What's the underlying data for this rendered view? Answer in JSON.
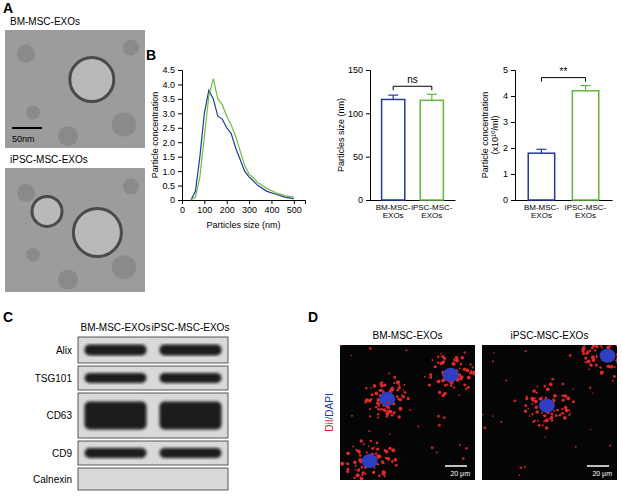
{
  "figure": {
    "panel_letters": [
      "A",
      "B",
      "C",
      "D"
    ],
    "panel_a": {
      "images": [
        {
          "label": "BM-MSC-EXOs"
        },
        {
          "label": "iPSC-MSC-EXOs"
        }
      ],
      "scale_bar": "50nm"
    },
    "panel_c": {
      "columns": [
        "BM-MSC-EXOs",
        "iPSC-MSC-EXOs"
      ],
      "rows": [
        {
          "label": "Alix",
          "detected": true
        },
        {
          "label": "TSG101",
          "detected": true
        },
        {
          "label": "CD63",
          "detected": true
        },
        {
          "label": "CD9",
          "detected": true
        },
        {
          "label": "Calnexin",
          "detected": false
        }
      ]
    },
    "panel_d": {
      "columns": [
        "BM-MSC-EXOs",
        "iPSC-MSC-EXOs"
      ],
      "stain_label": [
        {
          "text": "DiI",
          "color": "#d42222"
        },
        {
          "text": "/DAPI",
          "color": "#2233a8"
        }
      ],
      "scale_bar": "20 μm"
    }
  },
  "chart_data": [
    {
      "type": "line",
      "x_label": "Particles size (nm)",
      "y_label": "Particle concentration",
      "x": [
        40,
        60,
        80,
        100,
        120,
        140,
        160,
        180,
        200,
        220,
        240,
        260,
        280,
        300,
        340,
        380,
        420,
        460,
        500
      ],
      "series": [
        {
          "color": "#25389a",
          "values": [
            0,
            0.3,
            1.5,
            3.0,
            3.8,
            3.5,
            2.9,
            2.8,
            2.5,
            2.3,
            1.8,
            1.4,
            1.0,
            0.8,
            0.5,
            0.3,
            0.2,
            0.1,
            0.05
          ]
        },
        {
          "color": "#6cbd3c",
          "values": [
            0,
            0.1,
            0.8,
            2.2,
            3.6,
            4.2,
            3.5,
            3.3,
            2.9,
            2.6,
            2.2,
            1.7,
            1.2,
            0.9,
            0.6,
            0.4,
            0.25,
            0.15,
            0.1
          ]
        }
      ],
      "xlim": [
        0,
        550
      ],
      "xticks": [
        0,
        100,
        200,
        300,
        400,
        500
      ],
      "ylim": [
        0,
        4.5
      ],
      "yticks": [
        0,
        0.5,
        {
          "value": 1,
          "label": "1.0"
        },
        1.5,
        {
          "value": 2,
          "label": "2.0"
        },
        2.5,
        {
          "value": 3,
          "label": "3.0"
        },
        3.5,
        {
          "value": 4,
          "label": "4.0"
        },
        4.5
      ]
    },
    {
      "type": "bar",
      "y_label": "Particles size (nm)",
      "categories": [
        "BM-MSC-EXOs",
        "iPSC-MSC-EXOs"
      ],
      "values": [
        116,
        115
      ],
      "errors": [
        5,
        7
      ],
      "colors": [
        "#25389a",
        "#5fb83a"
      ],
      "ylim": [
        0,
        150
      ],
      "yticks": [
        0,
        50,
        100,
        150
      ],
      "annotations": [
        {
          "text": "ns"
        }
      ]
    },
    {
      "type": "bar",
      "y_label": "Particle concentration (x10¹⁰/ml)",
      "categories": [
        "BM-MSC-EXOs",
        "iPSC-MSC-EXOs"
      ],
      "values": [
        1.8,
        4.2
      ],
      "errors": [
        0.15,
        0.2
      ],
      "colors": [
        "#25389a",
        "#5fb83a"
      ],
      "ylim": [
        0,
        5
      ],
      "yticks": [
        0,
        1,
        2,
        3,
        4,
        5
      ],
      "annotations": [
        {
          "text": "**"
        }
      ]
    }
  ]
}
